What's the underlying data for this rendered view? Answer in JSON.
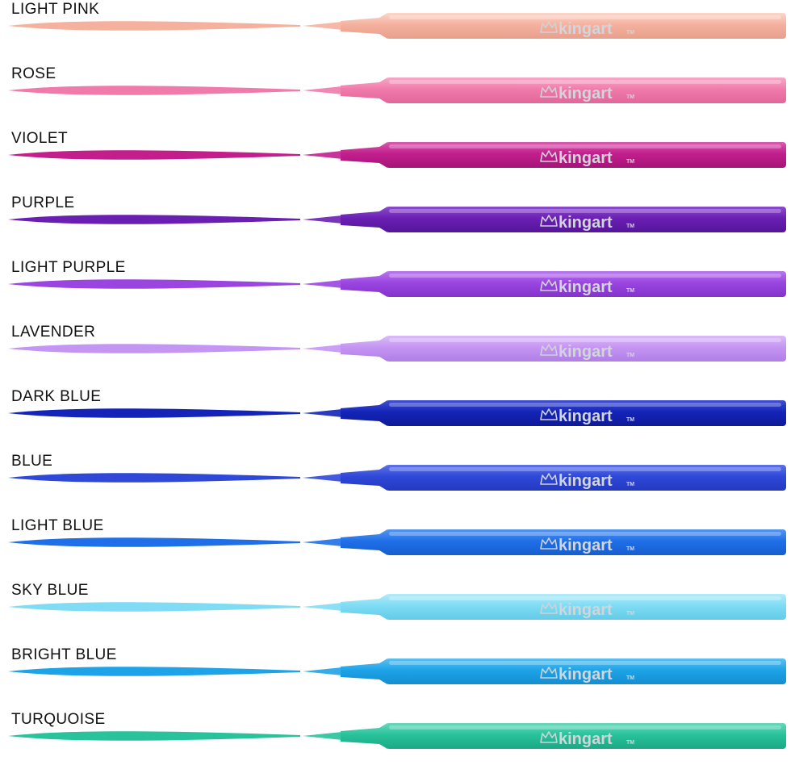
{
  "brand": "kingart",
  "trademark": "TM",
  "markers": [
    {
      "label": "LIGHT PINK",
      "color": "#f5b19e",
      "light": "#fbd6ca",
      "dark": "#e7a08c"
    },
    {
      "label": "ROSE",
      "color": "#f07bab",
      "light": "#f7a9c7",
      "dark": "#e2669a"
    },
    {
      "label": "VIOLET",
      "color": "#c21f8d",
      "light": "#d85cb0",
      "dark": "#a61478"
    },
    {
      "label": "PURPLE",
      "color": "#6a1fb3",
      "light": "#8c4ccd",
      "dark": "#55159a"
    },
    {
      "label": "LIGHT PURPLE",
      "color": "#9a45e0",
      "light": "#b777ec",
      "dark": "#8433cc"
    },
    {
      "label": "LAVENDER",
      "color": "#c595f3",
      "light": "#dbbaf8",
      "dark": "#b07ee6"
    },
    {
      "label": "DARK BLUE",
      "color": "#1424b8",
      "light": "#4150cf",
      "dark": "#0e1a98"
    },
    {
      "label": "BLUE",
      "color": "#2f48d8",
      "light": "#5d73e6",
      "dark": "#2339c0"
    },
    {
      "label": "LIGHT BLUE",
      "color": "#1f6fe8",
      "light": "#5595f0",
      "dark": "#165ed0"
    },
    {
      "label": "SKY BLUE",
      "color": "#7fdcf4",
      "light": "#b4ebf9",
      "dark": "#63cbe7"
    },
    {
      "label": "BRIGHT BLUE",
      "color": "#1ea3e8",
      "light": "#5cc0f0",
      "dark": "#148ed0"
    },
    {
      "label": "TURQUOISE",
      "color": "#28c29b",
      "light": "#6ad8bb",
      "dark": "#1aa985"
    }
  ]
}
